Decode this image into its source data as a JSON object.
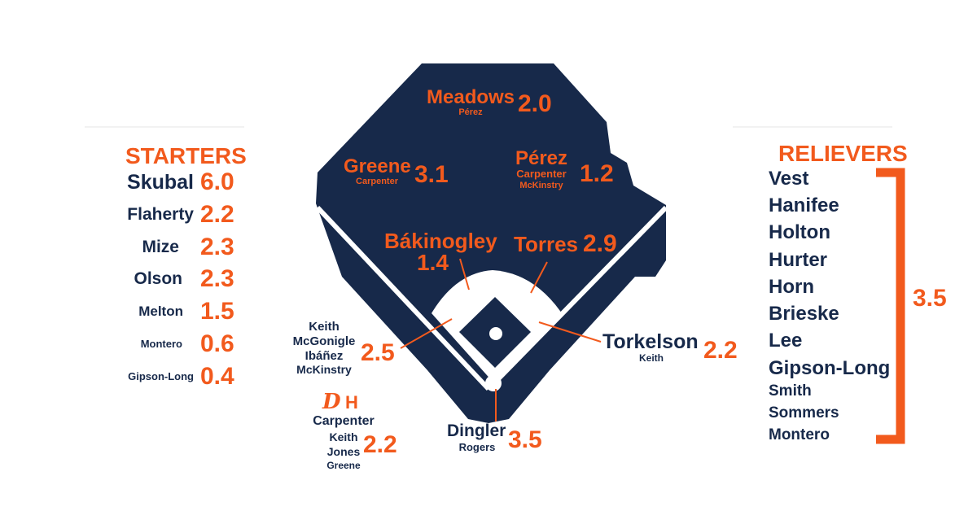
{
  "colors": {
    "navy": "#17294a",
    "orange": "#f25a1d",
    "infield": "#ffffff"
  },
  "starters": {
    "title": "STARTERS",
    "rows": [
      {
        "name": "Skubal",
        "value": "6.0"
      },
      {
        "name": "Flaherty",
        "value": "2.2"
      },
      {
        "name": "Mize",
        "value": "2.3"
      },
      {
        "name": "Olson",
        "value": "2.3"
      },
      {
        "name": "Melton",
        "value": "1.5"
      },
      {
        "name": "Montero",
        "value": "0.6"
      },
      {
        "name": "Gipson-Long",
        "value": "0.4"
      }
    ]
  },
  "relievers": {
    "title": "RELIEVERS",
    "names": [
      "Vest",
      "Hanifee",
      "Holton",
      "Hurter",
      "Horn",
      "Brieske",
      "Lee",
      "Gipson-Long",
      "Smith",
      "Sommers",
      "Montero"
    ],
    "value": "3.5"
  },
  "positions": {
    "cf": {
      "name": "Meadows",
      "backups": [
        "Pérez"
      ],
      "value": "2.0"
    },
    "lf": {
      "name": "Greene",
      "backups": [
        "Carpenter"
      ],
      "value": "3.1"
    },
    "rf": {
      "name": "Pérez",
      "backups": [
        "Carpenter",
        "McKinstry"
      ],
      "value": "1.2"
    },
    "ss": {
      "name": "Bákinogley",
      "value": "1.4"
    },
    "second": {
      "name": "Torres",
      "value": "2.9"
    },
    "third": {
      "names": [
        "Keith",
        "McGonigle",
        "Ibáñez",
        "McKinstry"
      ],
      "value": "2.5"
    },
    "first": {
      "name": "Torkelson",
      "backups": [
        "Keith"
      ],
      "value": "2.2"
    },
    "catcher": {
      "name": "Dingler",
      "backups": [
        "Rogers"
      ],
      "value": "3.5"
    },
    "dh": {
      "logo": "D",
      "names": [
        "Carpenter",
        "Keith",
        "Jones",
        "Greene"
      ],
      "value": "2.2"
    }
  }
}
